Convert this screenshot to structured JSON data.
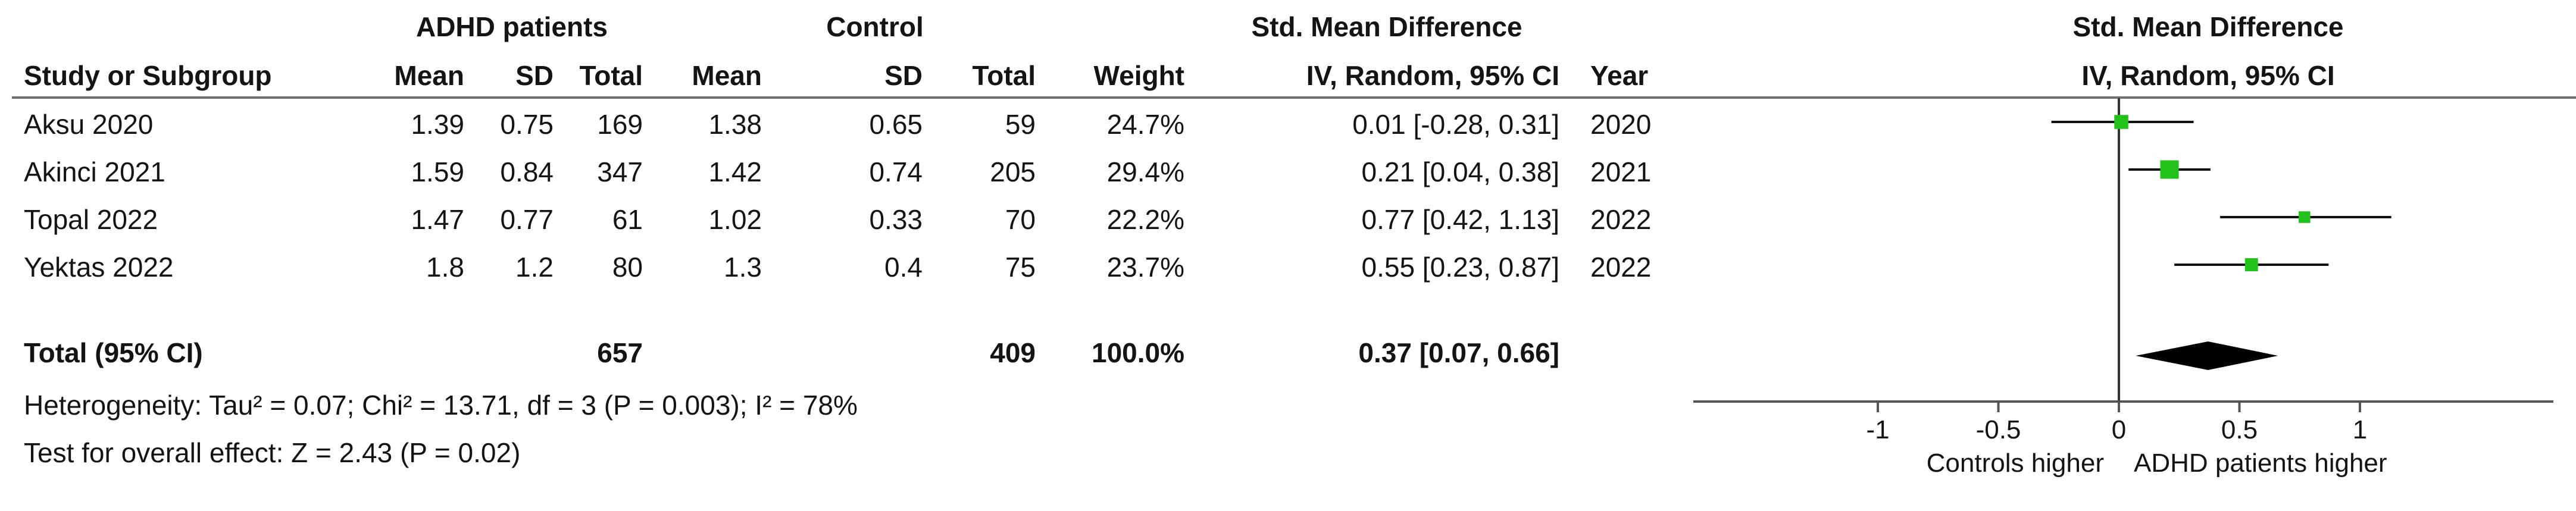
{
  "table": {
    "header_groups": {
      "adhd": "ADHD patients",
      "control": "Control",
      "smd": "Std. Mean Difference"
    },
    "columns": [
      "Study or Subgroup",
      "Mean",
      "SD",
      "Total",
      "Mean",
      "SD",
      "Total",
      "Weight",
      "IV, Random, 95% CI",
      "Year"
    ],
    "rows": [
      {
        "study": "Aksu 2020",
        "adhd_mean": "1.39",
        "adhd_sd": "0.75",
        "adhd_total": "169",
        "ctrl_mean": "1.38",
        "ctrl_sd": "0.65",
        "ctrl_total": "59",
        "weight": "24.7%",
        "ci": "0.01 [-0.28, 0.31]",
        "year": "2020"
      },
      {
        "study": "Akinci 2021",
        "adhd_mean": "1.59",
        "adhd_sd": "0.84",
        "adhd_total": "347",
        "ctrl_mean": "1.42",
        "ctrl_sd": "0.74",
        "ctrl_total": "205",
        "weight": "29.4%",
        "ci": "0.21 [0.04, 0.38]",
        "year": "2021"
      },
      {
        "study": "Topal 2022",
        "adhd_mean": "1.47",
        "adhd_sd": "0.77",
        "adhd_total": "61",
        "ctrl_mean": "1.02",
        "ctrl_sd": "0.33",
        "ctrl_total": "70",
        "weight": "22.2%",
        "ci": "0.77 [0.42, 1.13]",
        "year": "2022"
      },
      {
        "study": "Yektas 2022",
        "adhd_mean": "1.8",
        "adhd_sd": "1.2",
        "adhd_total": "80",
        "ctrl_mean": "1.3",
        "ctrl_sd": "0.4",
        "ctrl_total": "75",
        "weight": "23.7%",
        "ci": "0.55 [0.23, 0.87]",
        "year": "2022"
      }
    ],
    "total": {
      "label": "Total (95% CI)",
      "adhd_total": "657",
      "ctrl_total": "409",
      "weight": "100.0%",
      "ci": "0.37 [0.07, 0.66]"
    },
    "heterogeneity": "Heterogeneity: Tau² = 0.07; Chi² = 13.71, df = 3 (P = 0.003); I² = 78%",
    "overall_effect": "Test for overall effect: Z = 2.43 (P = 0.02)"
  },
  "plot": {
    "header_line1": "Std. Mean Difference",
    "header_line2": "IV, Random, 95% CI",
    "left_label": "Controls higher",
    "right_label": "ADHD patients higher",
    "marker_color": "#22c21a",
    "diamond_color": "#000000"
  },
  "chart_data": {
    "type": "forest",
    "x_ticks": [
      -1,
      -0.5,
      0,
      0.5,
      1
    ],
    "tick_labels": [
      "-1",
      "-0.5",
      "0",
      "0.5",
      "1"
    ],
    "xlim": [
      -1,
      1
    ],
    "studies": [
      {
        "name": "Aksu 2020",
        "est": 0.01,
        "lo": -0.28,
        "hi": 0.31,
        "weight": 24.7
      },
      {
        "name": "Akinci 2021",
        "est": 0.21,
        "lo": 0.04,
        "hi": 0.38,
        "weight": 29.4
      },
      {
        "name": "Topal 2022",
        "est": 0.77,
        "lo": 0.42,
        "hi": 1.13,
        "weight": 22.2
      },
      {
        "name": "Yektas 2022",
        "est": 0.55,
        "lo": 0.23,
        "hi": 0.87,
        "weight": 23.7
      }
    ],
    "pooled": {
      "est": 0.37,
      "lo": 0.07,
      "hi": 0.66
    }
  }
}
